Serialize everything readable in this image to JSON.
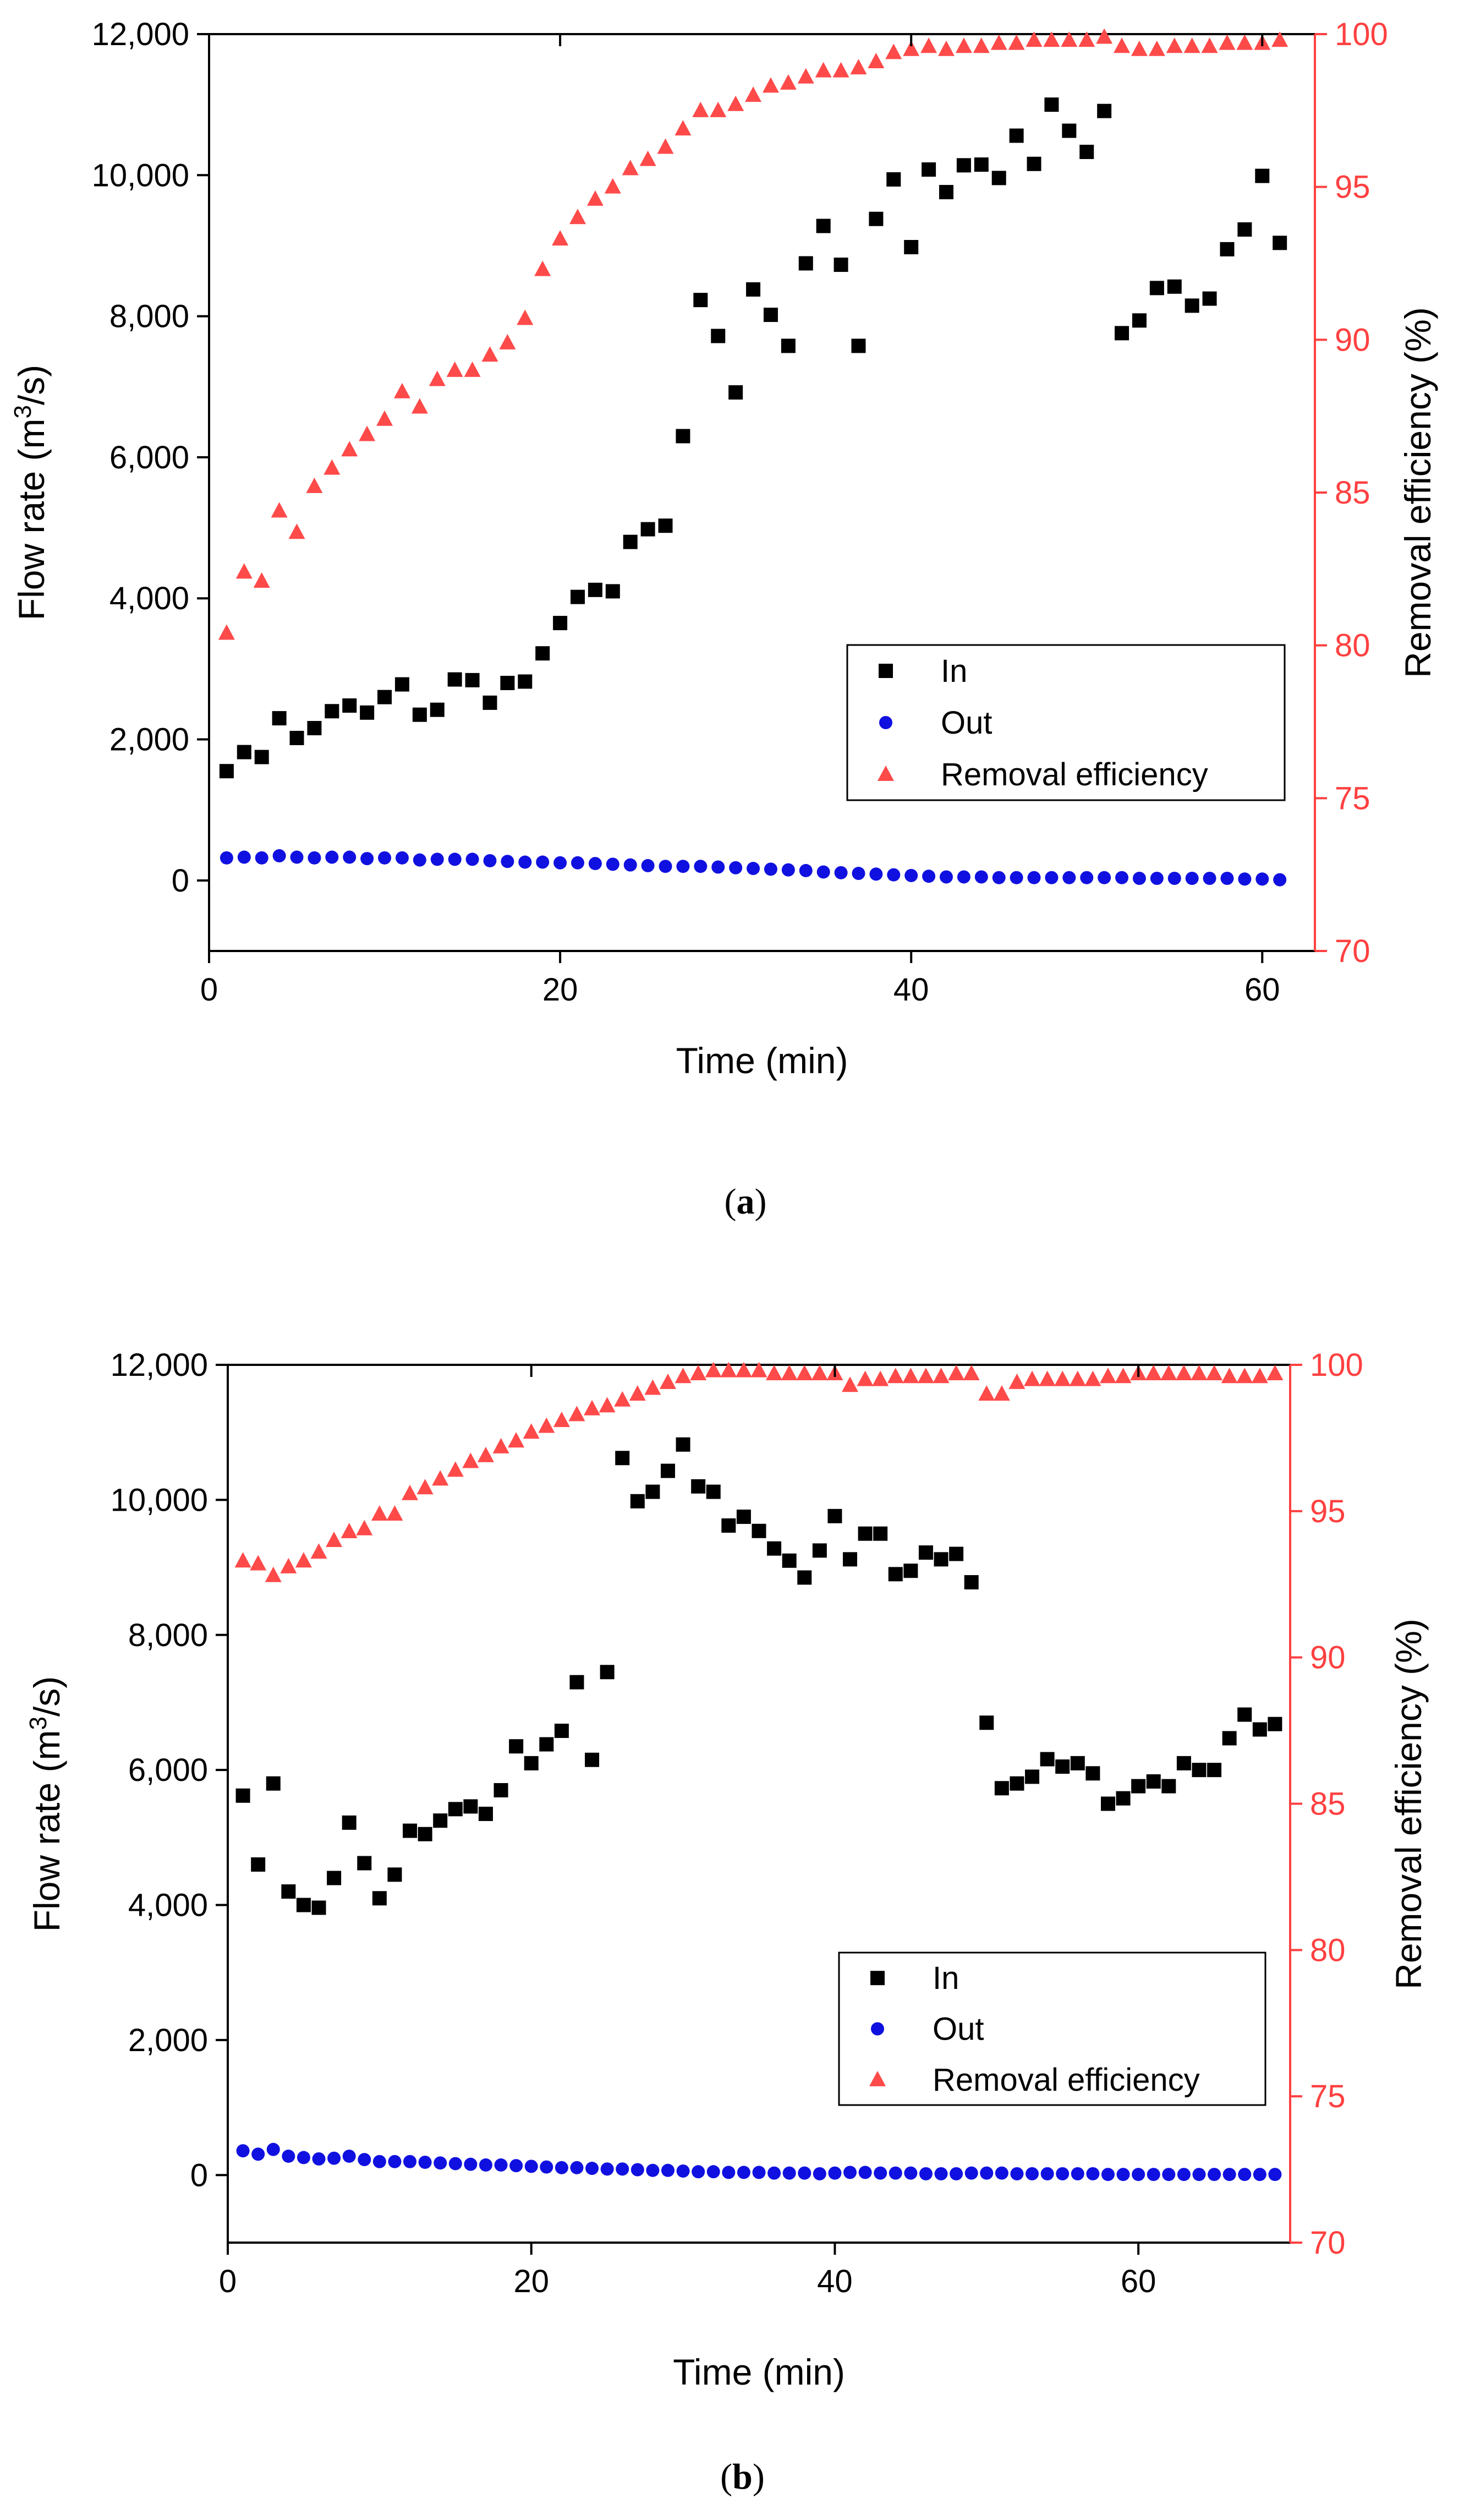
{
  "colors": {
    "in": "#000000",
    "out": "#1010e0",
    "eff": "#ff4a4a",
    "right_axis": "#ff4040"
  },
  "chart_data": [
    {
      "type": "scatter",
      "caption": "a",
      "xlabel": "Time (min)",
      "ylabel": "Flow rate (m³/s)",
      "ylabel_prefix": "Flow rate (m",
      "ylabel_sup": "3",
      "ylabel_suffix": "/s)",
      "y2label": "Removal efficiency (%)",
      "xlim": [
        0,
        63
      ],
      "ylim": [
        -1000,
        12000
      ],
      "y2lim": [
        70,
        100
      ],
      "xticks": [
        0,
        20,
        40,
        60
      ],
      "xtick_labels": [
        "0",
        "20",
        "40",
        "60"
      ],
      "yticks": [
        0,
        2000,
        4000,
        6000,
        8000,
        10000,
        12000
      ],
      "ytick_labels": [
        "0",
        "2,000",
        "4,000",
        "6,000",
        "8,000",
        "10,000",
        "12,000"
      ],
      "y2ticks": [
        70,
        75,
        80,
        85,
        90,
        95,
        100
      ],
      "y2tick_labels": [
        "70",
        "75",
        "80",
        "85",
        "90",
        "95",
        "100"
      ],
      "legend": [
        "In",
        "Out",
        "Removal efficiency"
      ],
      "legend_position": "lower-right",
      "series": [
        {
          "name": "In",
          "axis": "left",
          "marker": "square",
          "x": [
            1,
            2,
            3,
            4,
            5,
            6,
            7,
            8,
            9,
            10,
            11,
            12,
            13,
            14,
            15,
            16,
            17,
            18,
            19,
            20,
            21,
            22,
            23,
            24,
            25,
            26,
            27,
            28,
            29,
            30,
            31,
            32,
            33,
            34,
            35,
            36,
            37,
            38,
            39,
            40,
            41,
            42,
            43,
            44,
            45,
            46,
            47,
            48,
            49,
            50,
            51,
            52,
            53,
            54,
            55,
            56,
            57,
            58,
            59,
            60,
            61
          ],
          "values": [
            1550,
            1820,
            1750,
            2300,
            2020,
            2160,
            2400,
            2480,
            2380,
            2600,
            2780,
            2350,
            2420,
            2850,
            2840,
            2520,
            2800,
            2820,
            3220,
            3650,
            4020,
            4120,
            4100,
            4800,
            4980,
            5030,
            6300,
            8230,
            7720,
            6920,
            8380,
            8020,
            7580,
            8750,
            9280,
            8730,
            7580,
            9380,
            9940,
            8980,
            10080,
            9760,
            10140,
            10150,
            9960,
            10560,
            10160,
            11000,
            10630,
            10330,
            10910,
            7760,
            7940,
            8400,
            8420,
            8150,
            8250,
            8950,
            9230,
            9990,
            9040
          ]
        },
        {
          "name": "Out",
          "axis": "left",
          "marker": "circle",
          "x": [
            1,
            2,
            3,
            4,
            5,
            6,
            7,
            8,
            9,
            10,
            11,
            12,
            13,
            14,
            15,
            16,
            17,
            18,
            19,
            20,
            21,
            22,
            23,
            24,
            25,
            26,
            27,
            28,
            29,
            30,
            31,
            32,
            33,
            34,
            35,
            36,
            37,
            38,
            39,
            40,
            41,
            42,
            43,
            44,
            45,
            46,
            47,
            48,
            49,
            50,
            51,
            52,
            53,
            54,
            55,
            56,
            57,
            58,
            59,
            60,
            61
          ],
          "values": [
            320,
            330,
            320,
            350,
            330,
            320,
            330,
            330,
            310,
            320,
            320,
            290,
            300,
            300,
            300,
            280,
            270,
            260,
            260,
            250,
            250,
            240,
            230,
            220,
            210,
            200,
            200,
            200,
            190,
            180,
            170,
            160,
            150,
            140,
            120,
            110,
            100,
            90,
            80,
            70,
            60,
            50,
            50,
            50,
            40,
            40,
            40,
            40,
            40,
            40,
            40,
            40,
            30,
            30,
            30,
            30,
            30,
            30,
            20,
            20,
            10
          ]
        },
        {
          "name": "Removal efficiency",
          "axis": "right",
          "marker": "triangle",
          "x": [
            1,
            2,
            3,
            4,
            5,
            6,
            7,
            8,
            9,
            10,
            11,
            12,
            13,
            14,
            15,
            16,
            17,
            18,
            19,
            20,
            21,
            22,
            23,
            24,
            25,
            26,
            27,
            28,
            29,
            30,
            31,
            32,
            33,
            34,
            35,
            36,
            37,
            38,
            39,
            40,
            41,
            42,
            43,
            44,
            45,
            46,
            47,
            48,
            49,
            50,
            51,
            52,
            53,
            54,
            55,
            56,
            57,
            58,
            59,
            60,
            61
          ],
          "values": [
            80.4,
            82.4,
            82.1,
            84.4,
            83.7,
            85.2,
            85.8,
            86.4,
            86.9,
            87.4,
            88.3,
            87.8,
            88.7,
            89.0,
            89.0,
            89.5,
            89.9,
            90.7,
            92.3,
            93.3,
            94.0,
            94.6,
            95.0,
            95.6,
            95.9,
            96.3,
            96.9,
            97.5,
            97.5,
            97.7,
            98.0,
            98.3,
            98.4,
            98.6,
            98.8,
            98.8,
            98.9,
            99.1,
            99.4,
            99.5,
            99.6,
            99.5,
            99.6,
            99.6,
            99.7,
            99.7,
            99.8,
            99.8,
            99.8,
            99.8,
            99.9,
            99.6,
            99.5,
            99.5,
            99.6,
            99.6,
            99.6,
            99.7,
            99.7,
            99.7,
            99.8
          ]
        }
      ]
    },
    {
      "type": "scatter",
      "caption": "b",
      "xlabel": "Time (min)",
      "ylabel": "Flow rate (m³/s)",
      "ylabel_prefix": "Flow rate (m",
      "ylabel_sup": "3",
      "ylabel_suffix": "/s)",
      "y2label": "Removal efficiency (%)",
      "xlim": [
        0,
        70
      ],
      "ylim": [
        -1000,
        12000
      ],
      "y2lim": [
        70,
        100
      ],
      "xticks": [
        0,
        20,
        40,
        60
      ],
      "xtick_labels": [
        "0",
        "20",
        "40",
        "60"
      ],
      "yticks": [
        0,
        2000,
        4000,
        6000,
        8000,
        10000,
        12000
      ],
      "ytick_labels": [
        "0",
        "2,000",
        "4,000",
        "6,000",
        "8,000",
        "10,000",
        "12,000"
      ],
      "y2ticks": [
        70,
        75,
        80,
        85,
        90,
        95,
        100
      ],
      "y2tick_labels": [
        "70",
        "75",
        "80",
        "85",
        "90",
        "95",
        "100"
      ],
      "legend": [
        "In",
        "Out",
        "Removal efficiency"
      ],
      "legend_position": "lower-right",
      "series": [
        {
          "name": "In",
          "axis": "left",
          "marker": "square",
          "x": [
            1,
            2,
            3,
            4,
            5,
            6,
            7,
            8,
            9,
            10,
            11,
            12,
            13,
            14,
            15,
            16,
            17,
            18,
            19,
            20,
            21,
            22,
            23,
            24,
            25,
            26,
            27,
            28,
            29,
            30,
            31,
            32,
            33,
            34,
            35,
            36,
            37,
            38,
            39,
            40,
            41,
            42,
            43,
            44,
            45,
            46,
            47,
            48,
            49,
            50,
            51,
            52,
            53,
            54,
            55,
            56,
            57,
            58,
            59,
            60,
            61,
            62,
            63,
            64,
            65,
            66,
            67,
            68,
            69
          ],
          "values": [
            5620,
            4600,
            5800,
            4200,
            4000,
            3960,
            4400,
            5220,
            4620,
            4100,
            4450,
            5100,
            5050,
            5250,
            5420,
            5460,
            5350,
            5700,
            6350,
            6100,
            6380,
            6580,
            7300,
            6150,
            7450,
            10620,
            9980,
            10120,
            10430,
            10820,
            10200,
            10120,
            9620,
            9750,
            9540,
            9280,
            9100,
            8850,
            9250,
            9760,
            9120,
            9500,
            9500,
            8900,
            8950,
            9220,
            9120,
            9200,
            8780,
            6700,
            5730,
            5800,
            5900,
            6160,
            6050,
            6100,
            5950,
            5500,
            5580,
            5760,
            5830,
            5760,
            6100,
            6000,
            6000,
            6470,
            6820,
            6600,
            6680
          ]
        },
        {
          "name": "Out",
          "axis": "left",
          "marker": "circle",
          "x": [
            1,
            2,
            3,
            4,
            5,
            6,
            7,
            8,
            9,
            10,
            11,
            12,
            13,
            14,
            15,
            16,
            17,
            18,
            19,
            20,
            21,
            22,
            23,
            24,
            25,
            26,
            27,
            28,
            29,
            30,
            31,
            32,
            33,
            34,
            35,
            36,
            37,
            38,
            39,
            40,
            41,
            42,
            43,
            44,
            45,
            46,
            47,
            48,
            49,
            50,
            51,
            52,
            53,
            54,
            55,
            56,
            57,
            58,
            59,
            60,
            61,
            62,
            63,
            64,
            65,
            66,
            67,
            68,
            69
          ],
          "values": [
            360,
            310,
            380,
            280,
            260,
            240,
            250,
            280,
            230,
            200,
            200,
            200,
            190,
            180,
            170,
            160,
            150,
            150,
            140,
            130,
            120,
            110,
            110,
            100,
            90,
            90,
            80,
            70,
            70,
            60,
            50,
            50,
            40,
            40,
            40,
            30,
            30,
            30,
            20,
            30,
            40,
            40,
            30,
            30,
            30,
            20,
            20,
            20,
            30,
            30,
            30,
            20,
            20,
            20,
            20,
            20,
            20,
            10,
            10,
            10,
            10,
            10,
            10,
            10,
            10,
            10,
            10,
            10,
            10
          ]
        },
        {
          "name": "Removal efficiency",
          "axis": "right",
          "marker": "triangle",
          "x": [
            1,
            2,
            3,
            4,
            5,
            6,
            7,
            8,
            9,
            10,
            11,
            12,
            13,
            14,
            15,
            16,
            17,
            18,
            19,
            20,
            21,
            22,
            23,
            24,
            25,
            26,
            27,
            28,
            29,
            30,
            31,
            32,
            33,
            34,
            35,
            36,
            37,
            38,
            39,
            40,
            41,
            42,
            43,
            44,
            45,
            46,
            47,
            48,
            49,
            50,
            51,
            52,
            53,
            54,
            55,
            56,
            57,
            58,
            59,
            60,
            61,
            62,
            63,
            64,
            65,
            66,
            67,
            68,
            69
          ],
          "values": [
            93.3,
            93.2,
            92.8,
            93.1,
            93.3,
            93.6,
            94.0,
            94.3,
            94.4,
            94.9,
            94.9,
            95.6,
            95.8,
            96.1,
            96.4,
            96.7,
            96.9,
            97.2,
            97.4,
            97.7,
            97.9,
            98.1,
            98.3,
            98.5,
            98.6,
            98.8,
            99.0,
            99.2,
            99.4,
            99.6,
            99.7,
            99.8,
            99.8,
            99.8,
            99.8,
            99.7,
            99.7,
            99.7,
            99.7,
            99.7,
            99.3,
            99.5,
            99.5,
            99.6,
            99.6,
            99.6,
            99.6,
            99.7,
            99.7,
            99.0,
            99.0,
            99.4,
            99.5,
            99.5,
            99.5,
            99.5,
            99.5,
            99.6,
            99.6,
            99.7,
            99.7,
            99.7,
            99.7,
            99.7,
            99.7,
            99.6,
            99.6,
            99.6,
            99.7
          ]
        }
      ]
    }
  ]
}
